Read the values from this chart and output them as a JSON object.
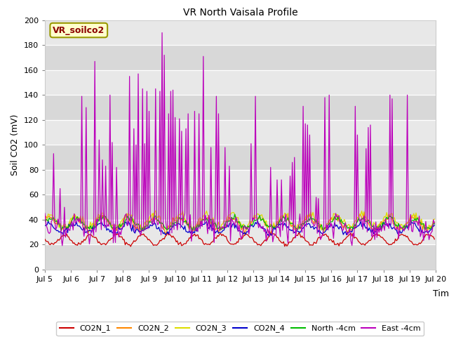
{
  "title": "VR North Vaisala Profile",
  "ylabel": "Soil CO2 (mV)",
  "xlabel": "Time",
  "annotation": "VR_soilco2",
  "ylim": [
    0,
    200
  ],
  "xlim": [
    0,
    360
  ],
  "x_tick_labels": [
    "Jul 5",
    "Jul 6",
    "Jul 7",
    "Jul 8",
    "Jul 9",
    "Jul 10",
    "Jul 11",
    "Jul 12",
    "Jul 13",
    "Jul 14",
    "Jul 15",
    "Jul 16",
    "Jul 17",
    "Jul 18",
    "Jul 19",
    "Jul 20"
  ],
  "x_tick_positions": [
    0,
    24,
    48,
    72,
    96,
    120,
    144,
    168,
    192,
    216,
    240,
    264,
    288,
    312,
    336,
    360
  ],
  "y_ticks": [
    0,
    20,
    40,
    60,
    80,
    100,
    120,
    140,
    160,
    180,
    200
  ],
  "legend_labels": [
    "CO2N_1",
    "CO2N_2",
    "CO2N_3",
    "CO2N_4",
    "North -4cm",
    "East -4cm"
  ],
  "legend_colors": [
    "#cc0000",
    "#ff8800",
    "#dddd00",
    "#0000cc",
    "#00bb00",
    "#bb00bb"
  ],
  "fig_bg_color": "#ffffff",
  "plot_bg_color": "#e8e8e8",
  "band_color_light": "#f0f0f0",
  "band_color_dark": "#e0e0e0",
  "grid_color": "#ffffff",
  "n_points": 360,
  "title_fontsize": 10,
  "axis_fontsize": 9,
  "tick_fontsize": 8
}
